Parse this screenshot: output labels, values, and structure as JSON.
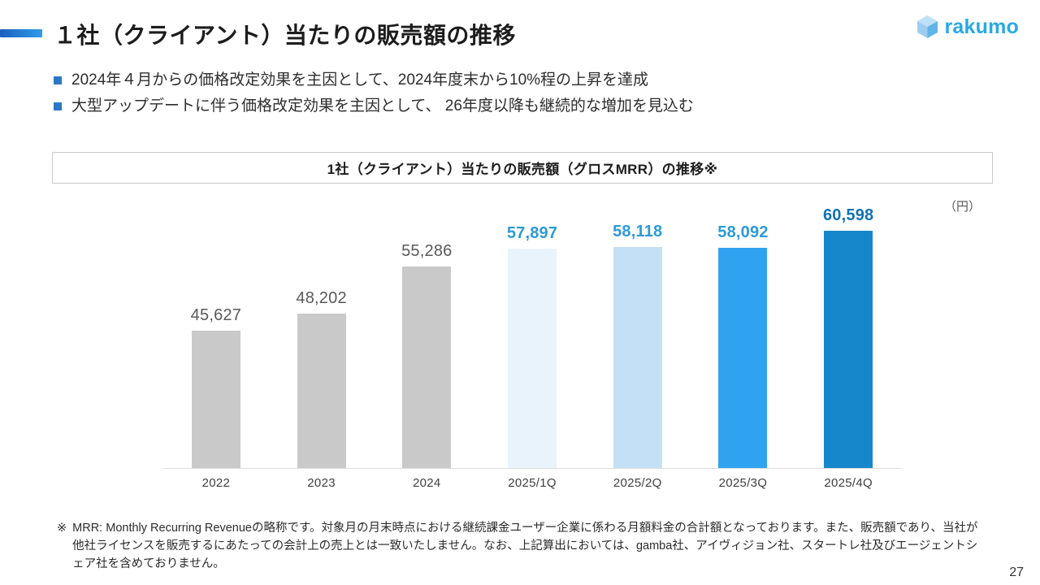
{
  "header": {
    "title": "１社（クライアント）当たりの販売額の推移",
    "logo_text": "rakumo"
  },
  "bullets": [
    "2024年４月からの価格改定効果を主因として、2024年度末から10%程の上昇を達成",
    "大型アップデートに伴う価格改定効果を主因として、 26年度以降も継続的な増加を見込む"
  ],
  "chart": {
    "box_title": "1社（クライアント）当たりの販売額（グロスMRR）の推移※",
    "unit_label": "（円）"
  },
  "chart_data": {
    "type": "bar",
    "title": "1社（クライアント）当たりの販売額（グロスMRR）の推移※",
    "ylabel": "（円）",
    "categories": [
      "2022",
      "2023",
      "2024",
      "2025/1Q",
      "2025/2Q",
      "2025/3Q",
      "2025/4Q"
    ],
    "values": [
      45627,
      48202,
      55286,
      57897,
      58118,
      58092,
      60598
    ],
    "labels": [
      "45,627",
      "48,202",
      "55,286",
      "57,897",
      "58,118",
      "58,092",
      "60,598"
    ],
    "bar_colors": [
      "#c9c9c9",
      "#c9c9c9",
      "#c9c9c9",
      "#e8f3fb",
      "#c3e0f6",
      "#30a3f0",
      "#1787cb"
    ],
    "label_colors": [
      "#595959",
      "#595959",
      "#595959",
      "#2d9ad8",
      "#2d9ad8",
      "#2d9ad8",
      "#1172b4"
    ],
    "label_bold": [
      false,
      false,
      false,
      true,
      true,
      true,
      true
    ],
    "ylim": [
      25000,
      60598
    ],
    "grid": false,
    "legend": "none",
    "axis_hidden": true
  },
  "footnote": {
    "marker": "※",
    "lines": [
      "MRR: Monthly Recurring Revenueの略称です。対象月の月末時点における継続課金ユーザー企業に係わる月額料金の合計額となっております。また、販売額であり、当社が",
      "他社ライセンスを販売するにあたっての会計上の売上とは一致いたしません。なお、上記算出においては、gamba社、アイヴィジョン社、スタートレ社及びエージェントシ",
      "ェア社を含めておりません。"
    ]
  },
  "page_number": "27"
}
